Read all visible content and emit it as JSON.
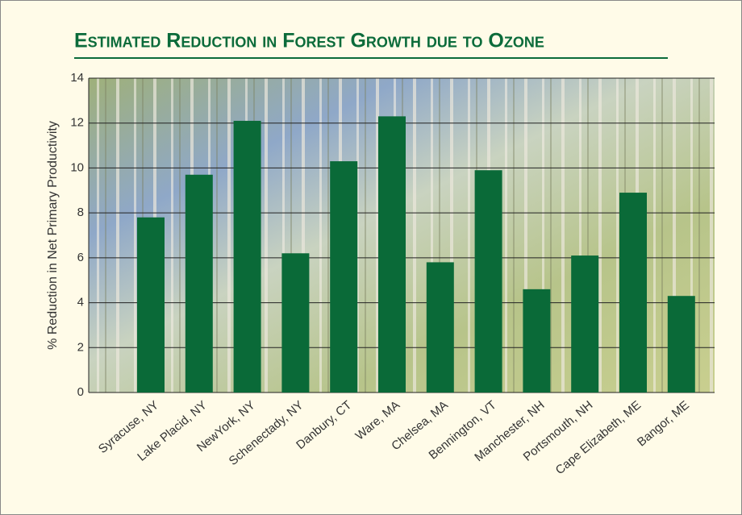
{
  "chart_data": {
    "type": "bar",
    "title": "Estimated Reduction in Forest Growth due to Ozone",
    "y_label": "% Reduction in Net Primary Productivity",
    "categories": [
      "Syracuse, NY",
      "Lake Placid, NY",
      "NewYork, NY",
      "Schenectady, NY",
      "Danbury, CT",
      "Ware, MA",
      "Chelsea, MA",
      "Bennington, VT",
      "Manchester, NH",
      "Portsmouth, NH",
      "Cape Elizabeth, ME",
      "Bangor, ME"
    ],
    "values": [
      7.8,
      9.7,
      12.1,
      6.2,
      10.3,
      12.3,
      5.8,
      9.9,
      4.6,
      6.1,
      8.9,
      4.3
    ],
    "color": "#0a6a38",
    "ylim": [
      0,
      14
    ],
    "yticks": [
      0,
      2,
      4,
      6,
      8,
      10,
      12,
      14
    ],
    "grid": true
  }
}
